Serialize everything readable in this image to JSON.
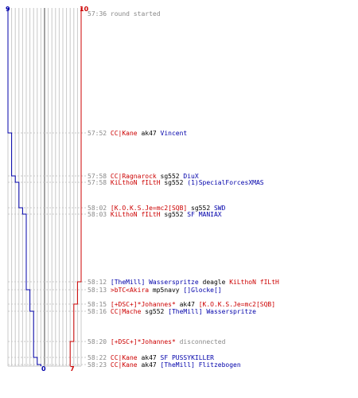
{
  "chart_data": {
    "type": "line",
    "colors": {
      "blue_team": "#0000aa",
      "red_team": "#cc0000",
      "grid": "#c8c8c8",
      "center_line": "#666666",
      "timestamp": "#888888",
      "event_line": "#c8c8c8"
    },
    "axis": {
      "count_top_blue": "9",
      "count_top_red": "10",
      "count_bottom_blue": "0",
      "count_bottom_red": "7",
      "players_range": [
        0,
        10
      ]
    },
    "series": [
      {
        "team": "blue",
        "values": [
          9,
          8,
          7,
          6,
          5,
          4,
          3,
          2,
          1,
          0
        ]
      },
      {
        "team": "red",
        "values": [
          10,
          9,
          8,
          7
        ]
      }
    ],
    "events": [
      {
        "time": "57:36",
        "parts": [
          {
            "text": "round started",
            "cls": "t-gray"
          }
        ],
        "blue_after": 9,
        "red_after": 10
      },
      {
        "time": "57:52",
        "parts": [
          {
            "text": "CC|Kane",
            "cls": "t-red"
          },
          {
            "text": " ak47 ",
            "cls": "t-text"
          },
          {
            "text": "Vincent",
            "cls": "t-blue"
          }
        ],
        "blue_after": 8,
        "red_after": 10
      },
      {
        "time": "57:58",
        "parts": [
          {
            "text": "CC|Ragnarock",
            "cls": "t-red"
          },
          {
            "text": " sg552 ",
            "cls": "t-text"
          },
          {
            "text": "DiuX",
            "cls": "t-blue"
          }
        ],
        "blue_after": 7,
        "red_after": 10
      },
      {
        "time": "57:58",
        "parts": [
          {
            "text": "KiLthoN fILtH",
            "cls": "t-red"
          },
          {
            "text": " sg552 ",
            "cls": "t-text"
          },
          {
            "text": "(1)SpecialForcesXMAS",
            "cls": "t-blue"
          }
        ],
        "blue_after": 6,
        "red_after": 10
      },
      {
        "time": "58:02",
        "parts": [
          {
            "text": "[K.O.K.S.Je=mc2[SQB]",
            "cls": "t-red"
          },
          {
            "text": " sg552 ",
            "cls": "t-text"
          },
          {
            "text": "SWD",
            "cls": "t-blue"
          }
        ],
        "blue_after": 5,
        "red_after": 10
      },
      {
        "time": "58:03",
        "parts": [
          {
            "text": "KiLthoN fILtH",
            "cls": "t-red"
          },
          {
            "text": " sg552 ",
            "cls": "t-text"
          },
          {
            "text": "SF MANIAX",
            "cls": "t-blue"
          }
        ],
        "blue_after": 4,
        "red_after": 10
      },
      {
        "time": "58:12",
        "parts": [
          {
            "text": "[TheMill] Wasserspritze",
            "cls": "t-blue"
          },
          {
            "text": " deagle ",
            "cls": "t-text"
          },
          {
            "text": "KiLthoN fILtH",
            "cls": "t-red"
          }
        ],
        "blue_after": 4,
        "red_after": 9
      },
      {
        "time": "58:13",
        "parts": [
          {
            "text": ">bTC<Akira",
            "cls": "t-red"
          },
          {
            "text": " mp5navy ",
            "cls": "t-text"
          },
          {
            "text": "[]Glocke[]",
            "cls": "t-blue"
          }
        ],
        "blue_after": 3,
        "red_after": 9
      },
      {
        "time": "58:15",
        "parts": [
          {
            "text": "[+DSC+]*Johannes*",
            "cls": "t-red"
          },
          {
            "text": " ak47 ",
            "cls": "t-text"
          },
          {
            "text": "[K.O.K.S.Je=mc2[SQB]",
            "cls": "t-red"
          }
        ],
        "blue_after": 3,
        "red_after": 8
      },
      {
        "time": "58:16",
        "parts": [
          {
            "text": "CC|Mache",
            "cls": "t-red"
          },
          {
            "text": " sg552 ",
            "cls": "t-text"
          },
          {
            "text": "[TheMill] Wasserspritze",
            "cls": "t-blue"
          }
        ],
        "blue_after": 2,
        "red_after": 8
      },
      {
        "time": "58:20",
        "parts": [
          {
            "text": "[+DSC+]*Johannes*",
            "cls": "t-red"
          },
          {
            "text": " disconnected",
            "cls": "t-gray"
          }
        ],
        "blue_after": 2,
        "red_after": 7
      },
      {
        "time": "58:22",
        "parts": [
          {
            "text": "CC|Kane",
            "cls": "t-red"
          },
          {
            "text": " ak47 ",
            "cls": "t-text"
          },
          {
            "text": "SF PUSSYKILLER",
            "cls": "t-blue"
          }
        ],
        "blue_after": 1,
        "red_after": 7
      },
      {
        "time": "58:23",
        "parts": [
          {
            "text": "CC|Kane",
            "cls": "t-red"
          },
          {
            "text": " ak47 ",
            "cls": "t-text"
          },
          {
            "text": "[TheMill] Flitzebogen",
            "cls": "t-blue"
          }
        ],
        "blue_after": 0,
        "red_after": 7
      }
    ]
  }
}
